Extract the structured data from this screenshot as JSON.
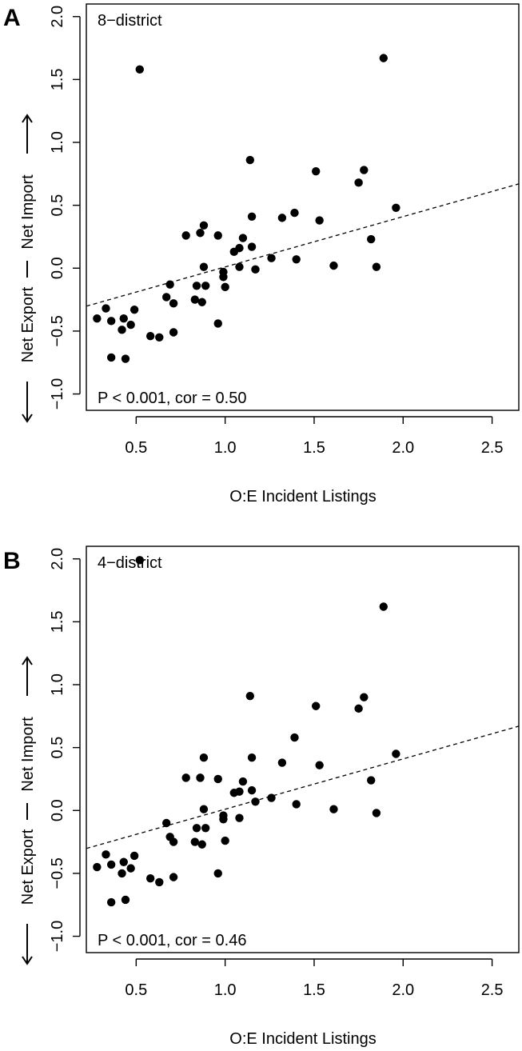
{
  "colors": {
    "points": "#000000",
    "background": "#ffffff"
  },
  "chart_data": [
    {
      "panel": "A",
      "type": "scatter",
      "title": "8−district",
      "annotation": "P < 0.001, cor = 0.50",
      "xlabel": "O:E Incident Listings",
      "ylabel_left": "Net Export",
      "ylabel_right": "Net Import",
      "xlim": [
        0.22,
        2.65
      ],
      "ylim": [
        -1.13,
        2.1
      ],
      "xticks": [
        0.5,
        1.0,
        1.5,
        2.0,
        2.5
      ],
      "xtick_labels": [
        "0.5",
        "1.0",
        "1.5",
        "2.0",
        "2.5"
      ],
      "yticks": [
        -1.0,
        -0.5,
        0.0,
        0.5,
        1.0,
        1.5,
        2.0
      ],
      "ytick_labels": [
        "−1.0",
        "−0.5",
        "0.0",
        "0.5",
        "1.0",
        "1.5",
        "2.0"
      ],
      "grid": false,
      "trendline": {
        "style": "dashed",
        "intercept": -0.39,
        "slope": 0.4
      },
      "points": [
        {
          "x": 0.28,
          "y": -0.4
        },
        {
          "x": 0.33,
          "y": -0.32
        },
        {
          "x": 0.36,
          "y": -0.42
        },
        {
          "x": 0.36,
          "y": -0.71
        },
        {
          "x": 0.42,
          "y": -0.49
        },
        {
          "x": 0.43,
          "y": -0.4
        },
        {
          "x": 0.44,
          "y": -0.72
        },
        {
          "x": 0.47,
          "y": -0.45
        },
        {
          "x": 0.49,
          "y": -0.33
        },
        {
          "x": 0.52,
          "y": 1.58
        },
        {
          "x": 0.58,
          "y": -0.54
        },
        {
          "x": 0.63,
          "y": -0.55
        },
        {
          "x": 0.67,
          "y": -0.23
        },
        {
          "x": 0.69,
          "y": -0.13
        },
        {
          "x": 0.71,
          "y": -0.51
        },
        {
          "x": 0.71,
          "y": -0.28
        },
        {
          "x": 0.78,
          "y": 0.26
        },
        {
          "x": 0.83,
          "y": -0.25
        },
        {
          "x": 0.84,
          "y": -0.14
        },
        {
          "x": 0.86,
          "y": 0.28
        },
        {
          "x": 0.87,
          "y": -0.27
        },
        {
          "x": 0.88,
          "y": 0.34
        },
        {
          "x": 0.88,
          "y": 0.01
        },
        {
          "x": 0.89,
          "y": -0.14
        },
        {
          "x": 0.96,
          "y": 0.26
        },
        {
          "x": 0.96,
          "y": -0.44
        },
        {
          "x": 0.99,
          "y": -0.03
        },
        {
          "x": 0.99,
          "y": -0.07
        },
        {
          "x": 1.0,
          "y": -0.15
        },
        {
          "x": 1.05,
          "y": 0.13
        },
        {
          "x": 1.08,
          "y": 0.01
        },
        {
          "x": 1.08,
          "y": 0.16
        },
        {
          "x": 1.1,
          "y": 0.24
        },
        {
          "x": 1.14,
          "y": 0.86
        },
        {
          "x": 1.15,
          "y": 0.41
        },
        {
          "x": 1.15,
          "y": 0.17
        },
        {
          "x": 1.17,
          "y": -0.01
        },
        {
          "x": 1.26,
          "y": 0.08
        },
        {
          "x": 1.32,
          "y": 0.4
        },
        {
          "x": 1.39,
          "y": 0.44
        },
        {
          "x": 1.4,
          "y": 0.07
        },
        {
          "x": 1.51,
          "y": 0.77
        },
        {
          "x": 1.53,
          "y": 0.38
        },
        {
          "x": 1.61,
          "y": 0.02
        },
        {
          "x": 1.75,
          "y": 0.68
        },
        {
          "x": 1.78,
          "y": 0.78
        },
        {
          "x": 1.82,
          "y": 0.23
        },
        {
          "x": 1.85,
          "y": 0.01
        },
        {
          "x": 1.89,
          "y": 1.67
        },
        {
          "x": 1.96,
          "y": 0.48
        }
      ]
    },
    {
      "panel": "B",
      "type": "scatter",
      "title": "4−district",
      "annotation": "P < 0.001, cor = 0.46",
      "xlabel": "O:E Incident Listings",
      "ylabel_left": "Net Export",
      "ylabel_right": "Net Import",
      "xlim": [
        0.22,
        2.65
      ],
      "ylim": [
        -1.13,
        2.1
      ],
      "xticks": [
        0.5,
        1.0,
        1.5,
        2.0,
        2.5
      ],
      "xtick_labels": [
        "0.5",
        "1.0",
        "1.5",
        "2.0",
        "2.5"
      ],
      "yticks": [
        -1.0,
        -0.5,
        0.0,
        0.5,
        1.0,
        1.5,
        2.0
      ],
      "ytick_labels": [
        "−1.0",
        "−0.5",
        "0.0",
        "0.5",
        "1.0",
        "1.5",
        "2.0"
      ],
      "grid": false,
      "trendline": {
        "style": "dashed",
        "intercept": -0.39,
        "slope": 0.4
      },
      "points": [
        {
          "x": 0.28,
          "y": -0.45
        },
        {
          "x": 0.33,
          "y": -0.35
        },
        {
          "x": 0.36,
          "y": -0.43
        },
        {
          "x": 0.36,
          "y": -0.73
        },
        {
          "x": 0.42,
          "y": -0.5
        },
        {
          "x": 0.43,
          "y": -0.41
        },
        {
          "x": 0.44,
          "y": -0.71
        },
        {
          "x": 0.47,
          "y": -0.46
        },
        {
          "x": 0.49,
          "y": -0.36
        },
        {
          "x": 0.52,
          "y": 1.99
        },
        {
          "x": 0.58,
          "y": -0.54
        },
        {
          "x": 0.63,
          "y": -0.57
        },
        {
          "x": 0.67,
          "y": -0.1
        },
        {
          "x": 0.69,
          "y": -0.21
        },
        {
          "x": 0.71,
          "y": -0.53
        },
        {
          "x": 0.71,
          "y": -0.25
        },
        {
          "x": 0.78,
          "y": 0.26
        },
        {
          "x": 0.83,
          "y": -0.25
        },
        {
          "x": 0.84,
          "y": -0.14
        },
        {
          "x": 0.86,
          "y": 0.26
        },
        {
          "x": 0.87,
          "y": -0.27
        },
        {
          "x": 0.88,
          "y": 0.42
        },
        {
          "x": 0.88,
          "y": 0.01
        },
        {
          "x": 0.89,
          "y": -0.14
        },
        {
          "x": 0.96,
          "y": 0.25
        },
        {
          "x": 0.96,
          "y": -0.5
        },
        {
          "x": 0.99,
          "y": -0.04
        },
        {
          "x": 0.99,
          "y": -0.07
        },
        {
          "x": 1.0,
          "y": -0.24
        },
        {
          "x": 1.05,
          "y": 0.14
        },
        {
          "x": 1.08,
          "y": -0.06
        },
        {
          "x": 1.08,
          "y": 0.15
        },
        {
          "x": 1.1,
          "y": 0.23
        },
        {
          "x": 1.14,
          "y": 0.91
        },
        {
          "x": 1.15,
          "y": 0.42
        },
        {
          "x": 1.15,
          "y": 0.16
        },
        {
          "x": 1.17,
          "y": 0.07
        },
        {
          "x": 1.26,
          "y": 0.1
        },
        {
          "x": 1.32,
          "y": 0.38
        },
        {
          "x": 1.39,
          "y": 0.58
        },
        {
          "x": 1.4,
          "y": 0.05
        },
        {
          "x": 1.51,
          "y": 0.83
        },
        {
          "x": 1.53,
          "y": 0.36
        },
        {
          "x": 1.61,
          "y": 0.01
        },
        {
          "x": 1.75,
          "y": 0.81
        },
        {
          "x": 1.78,
          "y": 0.9
        },
        {
          "x": 1.82,
          "y": 0.24
        },
        {
          "x": 1.85,
          "y": -0.02
        },
        {
          "x": 1.89,
          "y": 1.62
        },
        {
          "x": 1.96,
          "y": 0.45
        }
      ]
    }
  ]
}
